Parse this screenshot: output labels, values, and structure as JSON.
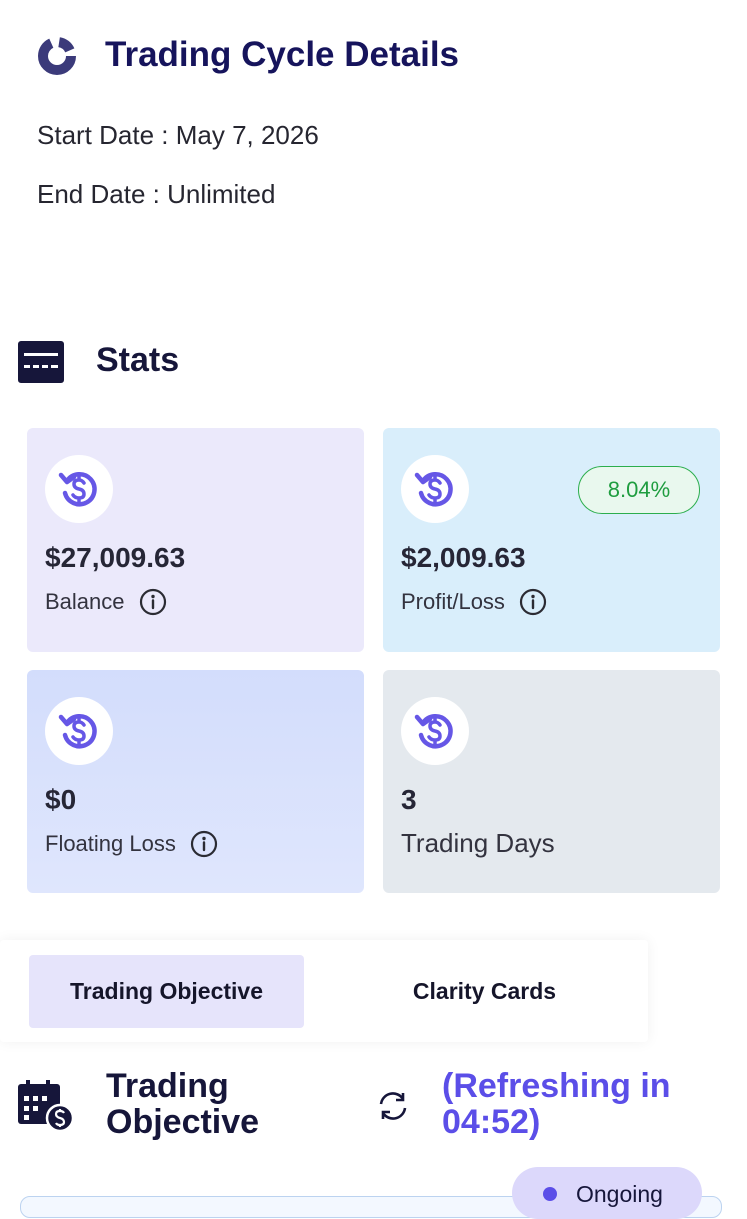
{
  "header": {
    "title": "Trading Cycle Details",
    "start_date": "Start Date : May 7, 2026",
    "end_date": "End Date : Unlimited"
  },
  "stats": {
    "title": "Stats",
    "cards": [
      {
        "value": "$27,009.63",
        "label": "Balance"
      },
      {
        "value": "$2,009.63",
        "label": "Profit/Loss",
        "badge": "8.04%"
      },
      {
        "value": "$0",
        "label": "Floating Loss"
      },
      {
        "value": "3",
        "label": "Trading Days"
      }
    ]
  },
  "tabs": [
    "Trading Objective",
    "Clarity Cards"
  ],
  "objective": {
    "title": "Trading Objective",
    "refresh": "(Refreshing in 04:52)",
    "status": "Ongoing"
  }
}
